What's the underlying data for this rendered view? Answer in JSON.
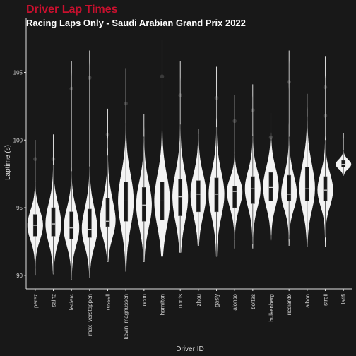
{
  "colors": {
    "background": "#181818",
    "title": "#c8102e",
    "subtitle": "#ffffff",
    "violin_fill": "#ffffff",
    "box_fill": "#181818",
    "points": "#444444",
    "axis": "#e0e0e0"
  },
  "chart_data": {
    "type": "violin",
    "title": "Driver Lap Times",
    "subtitle": "Racing Laps Only - Saudi Arabian Grand Prix 2022",
    "xlabel": "Driver ID",
    "ylabel": "Laptime (s)",
    "ylim": [
      89,
      108
    ],
    "yticks": [
      90,
      95,
      100,
      105
    ],
    "grid": false,
    "categories": [
      "perez",
      "sainz",
      "leclerc",
      "max_verstappen",
      "russell",
      "kevin_magnussen",
      "ocon",
      "hamilton",
      "norris",
      "zhou",
      "gasly",
      "alonso",
      "bottas",
      "hulkenberg",
      "ricciardo",
      "albon",
      "stroll",
      "latifi"
    ],
    "series": [
      {
        "category": "perez",
        "min": 90.0,
        "q1": 92.9,
        "median": 93.7,
        "q3": 94.5,
        "max": 100.0,
        "outliers": [
          98.6
        ]
      },
      {
        "category": "sainz",
        "min": 90.1,
        "q1": 92.9,
        "median": 93.8,
        "q3": 95.0,
        "max": 100.4,
        "outliers": [
          98.6
        ]
      },
      {
        "category": "leclerc",
        "min": 89.7,
        "q1": 92.7,
        "median": 93.5,
        "q3": 94.7,
        "max": 105.8,
        "outliers": [
          103.8
        ]
      },
      {
        "category": "max_verstappen",
        "min": 89.8,
        "q1": 92.8,
        "median": 93.4,
        "q3": 94.9,
        "max": 106.6,
        "outliers": [
          104.6
        ]
      },
      {
        "category": "russell",
        "min": 91.0,
        "q1": 93.6,
        "median": 94.0,
        "q3": 95.7,
        "max": 102.3,
        "outliers": [
          100.4
        ]
      },
      {
        "category": "kevin_magnussen",
        "min": 90.3,
        "q1": 94.0,
        "median": 95.5,
        "q3": 96.9,
        "max": 105.3,
        "outliers": [
          102.7
        ]
      },
      {
        "category": "ocon",
        "min": 91.0,
        "q1": 94.0,
        "median": 95.2,
        "q3": 96.5,
        "max": 101.9,
        "outliers": []
      },
      {
        "category": "hamilton",
        "min": 91.4,
        "q1": 94.1,
        "median": 95.5,
        "q3": 96.9,
        "max": 107.4,
        "outliers": [
          104.7
        ]
      },
      {
        "category": "norris",
        "min": 91.7,
        "q1": 94.4,
        "median": 95.8,
        "q3": 97.1,
        "max": 105.8,
        "outliers": [
          103.3
        ]
      },
      {
        "category": "zhou",
        "min": 92.2,
        "q1": 94.7,
        "median": 96.0,
        "q3": 97.0,
        "max": 100.8,
        "outliers": []
      },
      {
        "category": "gasly",
        "min": 91.4,
        "q1": 94.7,
        "median": 96.0,
        "q3": 97.2,
        "max": 105.4,
        "outliers": [
          103.1
        ]
      },
      {
        "category": "alonso",
        "min": 92.0,
        "q1": 95.0,
        "median": 96.2,
        "q3": 96.6,
        "max": 103.3,
        "outliers": [
          101.4
        ]
      },
      {
        "category": "bottas",
        "min": 92.0,
        "q1": 95.3,
        "median": 96.4,
        "q3": 97.3,
        "max": 104.1,
        "outliers": [
          102.2
        ]
      },
      {
        "category": "hulkenberg",
        "min": 92.6,
        "q1": 95.5,
        "median": 96.5,
        "q3": 97.6,
        "max": 102.0,
        "outliers": [
          100.2
        ]
      },
      {
        "category": "ricciardo",
        "min": 92.2,
        "q1": 95.5,
        "median": 96.0,
        "q3": 97.4,
        "max": 106.6,
        "outliers": [
          104.3
        ]
      },
      {
        "category": "albon",
        "min": 92.1,
        "q1": 95.5,
        "median": 96.4,
        "q3": 98.0,
        "max": 103.4,
        "outliers": []
      },
      {
        "category": "stroll",
        "min": 92.1,
        "q1": 95.5,
        "median": 96.3,
        "q3": 97.3,
        "max": 106.2,
        "outliers": [
          103.9,
          101.8
        ]
      },
      {
        "category": "latifi",
        "min": 97.4,
        "q1": 98.0,
        "median": 98.2,
        "q3": 98.5,
        "max": 100.5,
        "outliers": []
      }
    ]
  }
}
